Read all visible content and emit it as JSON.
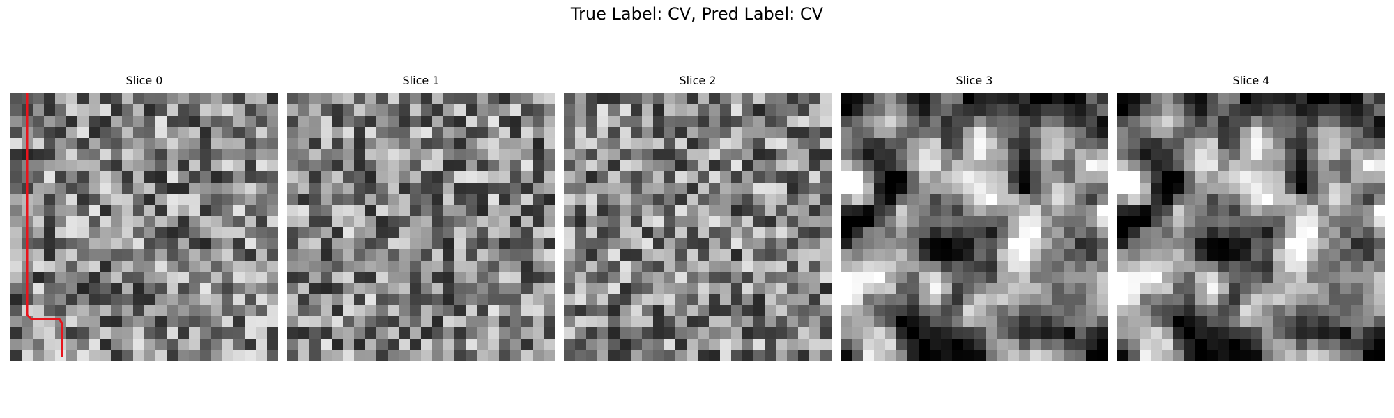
{
  "figure": {
    "title": "True Label: CV, Pred Label: CV"
  },
  "panels": [
    {
      "title": "Slice 0",
      "seed": 11,
      "smooth": 0,
      "has_path": true
    },
    {
      "title": "Slice 1",
      "seed": 23,
      "smooth": 0,
      "has_path": false
    },
    {
      "title": "Slice 2",
      "seed": 37,
      "smooth": 0,
      "has_path": false
    },
    {
      "title": "Slice 3",
      "seed": 53,
      "smooth": 1,
      "has_path": false
    },
    {
      "title": "Slice 4",
      "seed": 53,
      "smooth": 1,
      "has_path": false
    }
  ],
  "grid_cells": 24,
  "path_color": "#e8141c",
  "colormap": "gray"
}
